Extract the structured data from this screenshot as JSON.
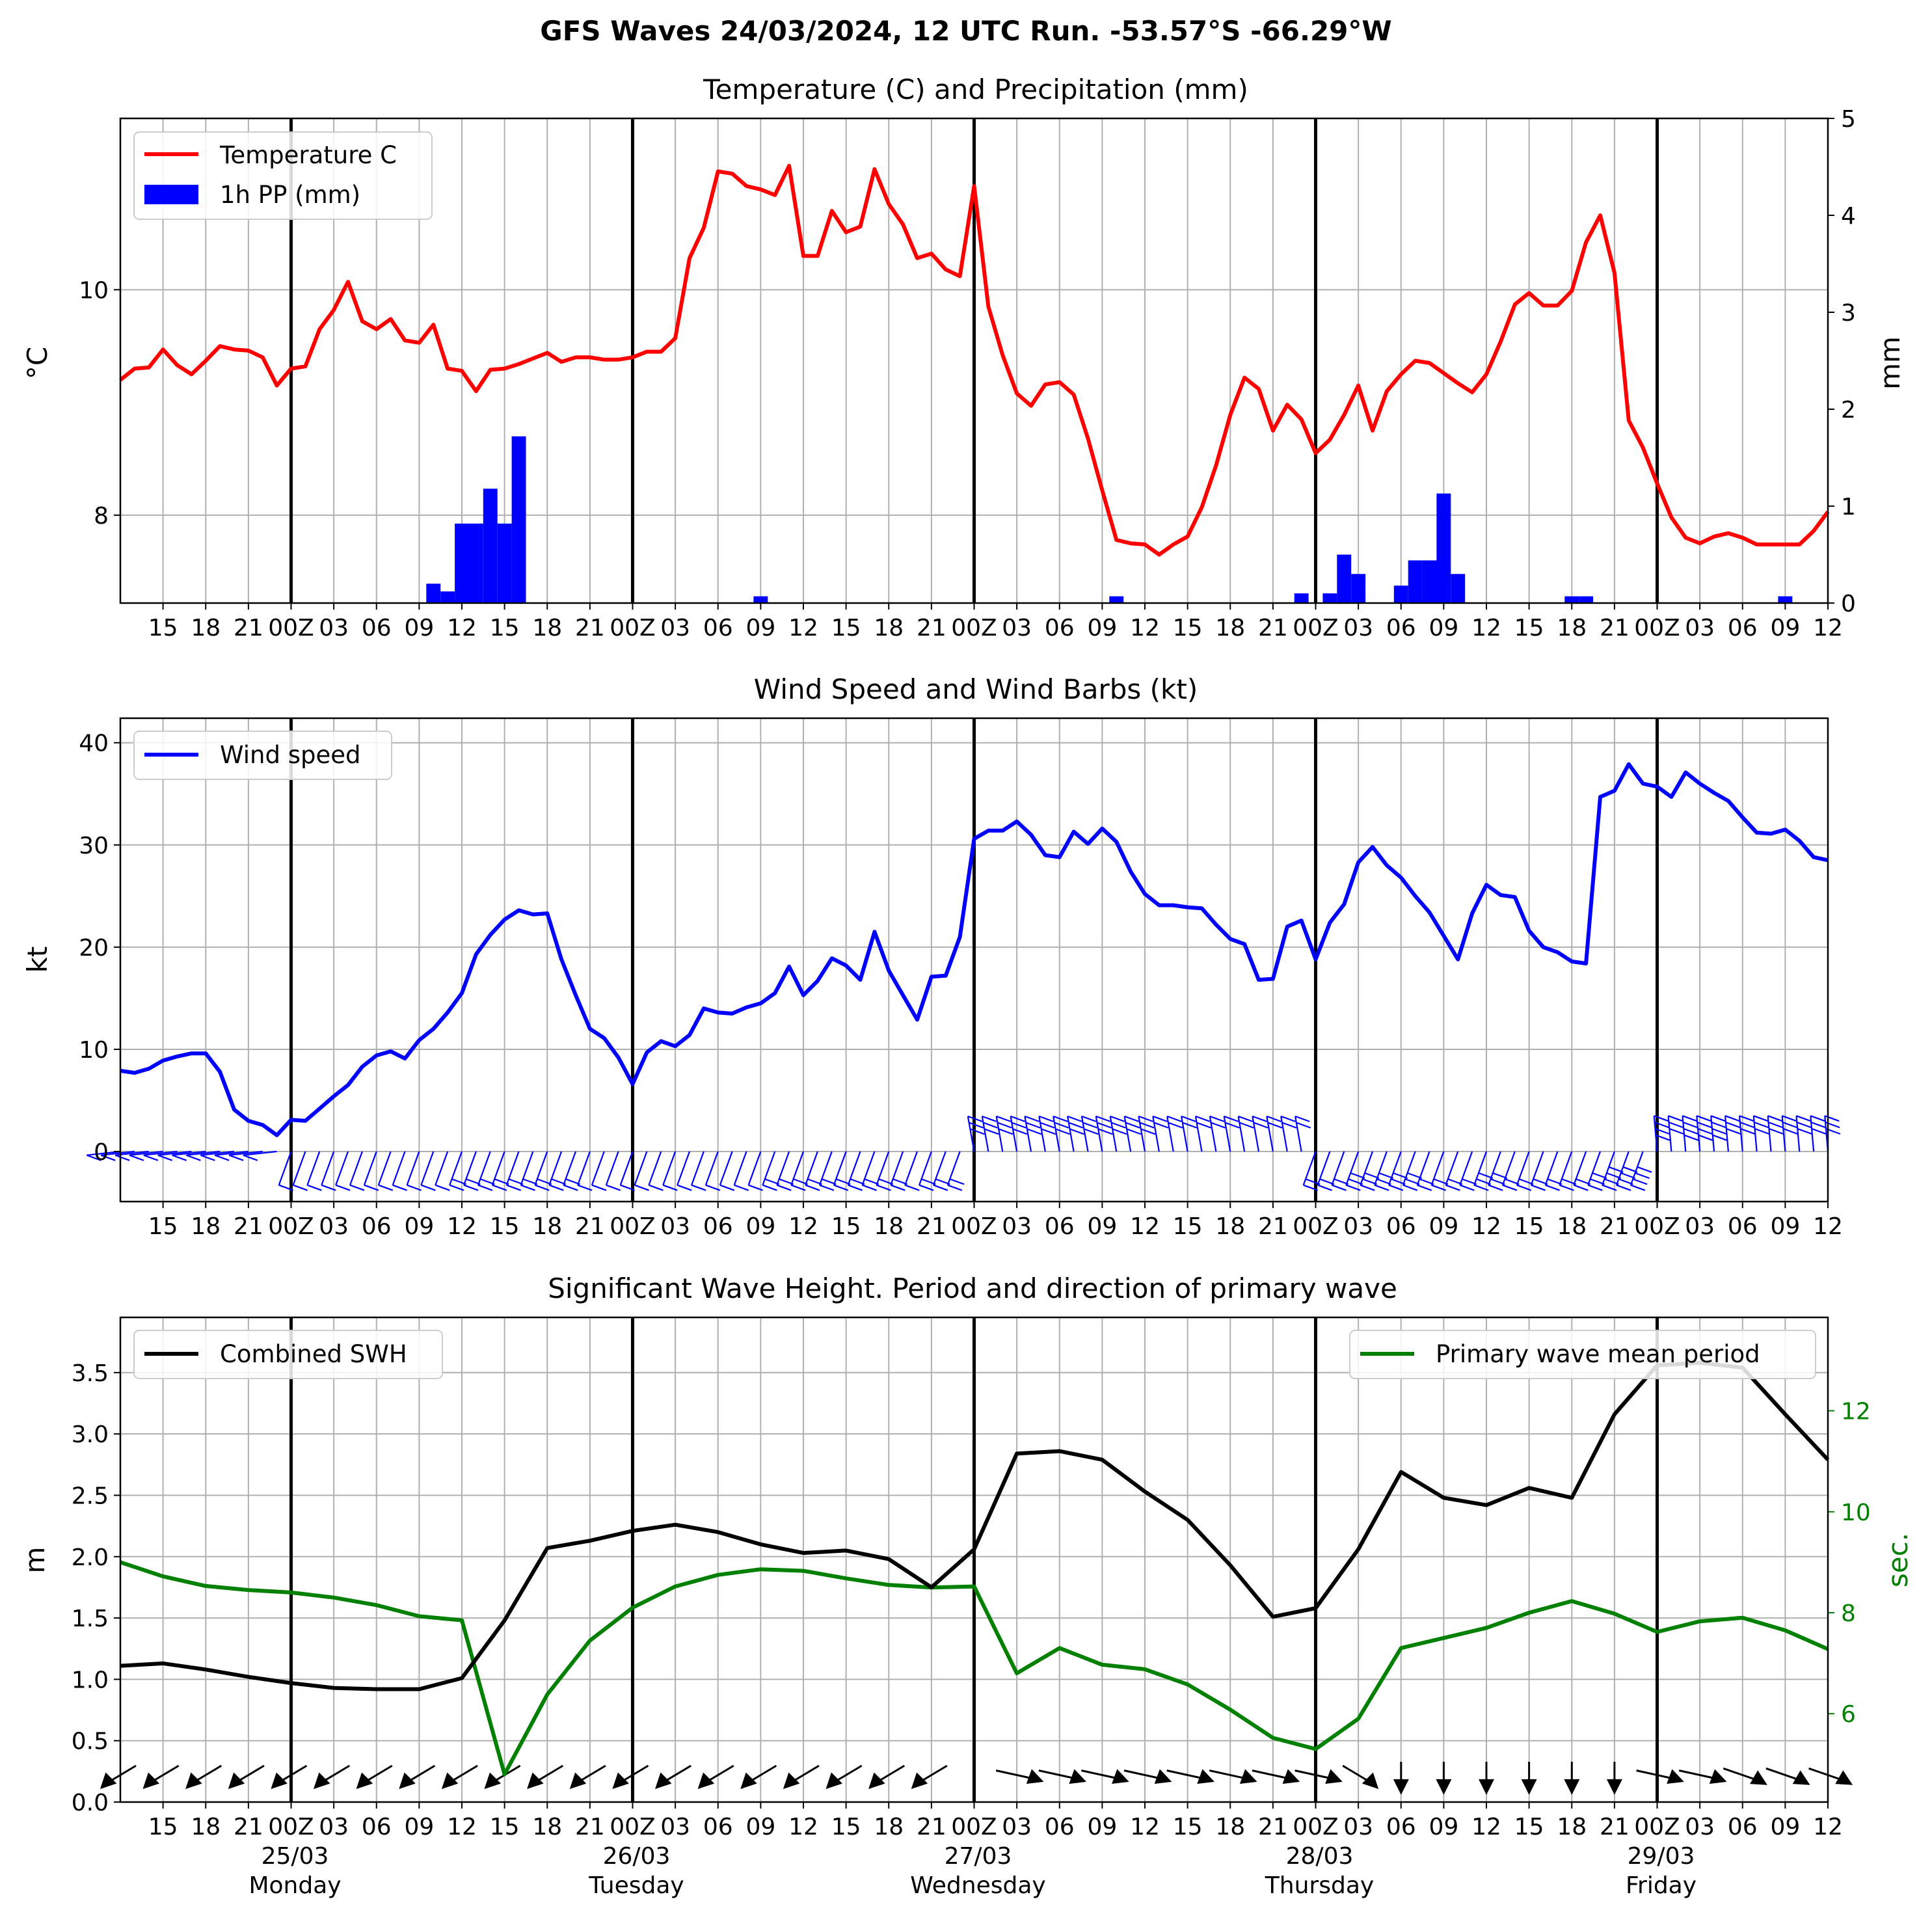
{
  "figure_title": "GFS Waves 24/03/2024, 12 UTC Run. -53.57°S -66.29°W",
  "colors": {
    "temperature": "#ff0000",
    "precipitation": "#0000ff",
    "wind": "#0000ff",
    "swh": "#000000",
    "period": "#008000",
    "grid": "#b0b0b0",
    "day_line": "#000000"
  },
  "x_axis": {
    "start": "24/03 12Z",
    "end": "29/03 12Z",
    "tick_labels": [
      "15",
      "18",
      "21",
      "00Z",
      "03",
      "06",
      "09",
      "12",
      "15",
      "18",
      "21",
      "00Z",
      "03",
      "06",
      "09",
      "12",
      "15",
      "18",
      "21",
      "00Z",
      "03",
      "06",
      "09",
      "12",
      "15",
      "18",
      "21",
      "00Z",
      "03",
      "06",
      "09",
      "12",
      "15",
      "18",
      "21",
      "00Z",
      "03",
      "06",
      "09",
      "12"
    ],
    "day_labels": [
      {
        "date": "25/03",
        "weekday": "Monday"
      },
      {
        "date": "26/03",
        "weekday": "Tuesday"
      },
      {
        "date": "27/03",
        "weekday": "Wednesday"
      },
      {
        "date": "28/03",
        "weekday": "Thursday"
      },
      {
        "date": "29/03",
        "weekday": "Friday"
      }
    ]
  },
  "chart_data": [
    {
      "type": "line",
      "title": "Temperature (C) and Precipitation (mm)",
      "ylabel": "°C",
      "ylabel_right": "mm",
      "ylim": [
        7.22,
        11.52
      ],
      "y_ticks": [
        8,
        10
      ],
      "ylim_right": [
        0,
        5
      ],
      "y_ticks_right": [
        0,
        1,
        2,
        3,
        4,
        5
      ],
      "grid": true,
      "legend_position": "upper-left",
      "x_hours": "hours after 24/03 12Z",
      "series": [
        {
          "name": "Temperature C",
          "kind": "line",
          "x": [
            0,
            1,
            2,
            3,
            4,
            5,
            6,
            7,
            8,
            9,
            10,
            11,
            12,
            13,
            14,
            15,
            16,
            17,
            18,
            19,
            20,
            21,
            22,
            23,
            24,
            25,
            26,
            27,
            28,
            29,
            30,
            31,
            32,
            33,
            34,
            35,
            36,
            37,
            38,
            39,
            40,
            41,
            42,
            43,
            44,
            45,
            46,
            47,
            48,
            49,
            50,
            51,
            52,
            53,
            54,
            55,
            56,
            57,
            58,
            59,
            60,
            61,
            62,
            63,
            64,
            65,
            66,
            67,
            68,
            69,
            70,
            71,
            72,
            73,
            74,
            75,
            76,
            77,
            78,
            79,
            80,
            81,
            82,
            83,
            84,
            85,
            86,
            87,
            88,
            89,
            90,
            91,
            92,
            93,
            94,
            95,
            96,
            97,
            98,
            99,
            100,
            101,
            102,
            103,
            104,
            105,
            106,
            107,
            108,
            109,
            110,
            111,
            112,
            113,
            114,
            115,
            116,
            117,
            118,
            119,
            120
          ],
          "values": [
            9.2,
            9.3,
            9.31,
            9.47,
            9.33,
            9.25,
            9.37,
            9.5,
            9.47,
            9.46,
            9.4,
            9.15,
            9.3,
            9.32,
            9.65,
            9.82,
            10.07,
            9.72,
            9.65,
            9.74,
            9.55,
            9.53,
            9.69,
            9.3,
            9.28,
            9.1,
            9.29,
            9.3,
            9.34,
            9.39,
            9.44,
            9.36,
            9.4,
            9.4,
            9.38,
            9.38,
            9.4,
            9.45,
            9.45,
            9.57,
            10.28,
            10.55,
            11.05,
            11.03,
            10.92,
            10.89,
            10.84,
            11.1,
            10.3,
            10.3,
            10.7,
            10.51,
            10.56,
            11.07,
            10.76,
            10.58,
            10.28,
            10.32,
            10.18,
            10.12,
            10.92,
            9.85,
            9.42,
            9.08,
            8.97,
            9.16,
            9.18,
            9.07,
            8.68,
            8.22,
            7.78,
            7.75,
            7.74,
            7.65,
            7.74,
            7.81,
            8.07,
            8.44,
            8.89,
            9.22,
            9.12,
            8.75,
            8.98,
            8.85,
            8.55,
            8.67,
            8.89,
            9.15,
            8.75,
            9.1,
            9.25,
            9.37,
            9.35,
            9.26,
            9.17,
            9.09,
            9.25,
            9.54,
            9.87,
            9.97,
            9.86,
            9.86,
            9.99,
            10.42,
            10.66,
            10.15,
            8.84,
            8.6,
            8.28,
            7.98,
            7.8,
            7.75,
            7.81,
            7.84,
            7.8,
            7.74,
            7.74,
            7.74,
            7.74,
            7.86,
            8.03
          ]
        },
        {
          "name": "1h PP (mm)",
          "kind": "bar",
          "axis": "right",
          "x": [
            22,
            23,
            24,
            25,
            26,
            27,
            28,
            45,
            70,
            83,
            85,
            86,
            87,
            90,
            91,
            92,
            93,
            94,
            95,
            102,
            103,
            117
          ],
          "values": [
            0.2,
            0.12,
            0.82,
            0.82,
            1.18,
            0.82,
            1.72,
            0.07,
            0.07,
            0.1,
            0.1,
            0.5,
            0.3,
            0.18,
            0.44,
            0.44,
            1.13,
            0.3,
            0.0,
            0.07,
            0.07,
            0.07
          ]
        }
      ]
    },
    {
      "type": "line",
      "title": "Wind Speed and Wind Barbs (kt)",
      "ylabel": "kt",
      "ylim": [
        -4.9,
        42.4
      ],
      "y_ticks": [
        0,
        10,
        20,
        30,
        40
      ],
      "grid": true,
      "legend_position": "upper-left",
      "x_hours": "hours after 24/03 12Z",
      "series": [
        {
          "name": "Wind speed",
          "kind": "line",
          "x": [
            0,
            1,
            2,
            3,
            4,
            5,
            6,
            7,
            8,
            9,
            10,
            11,
            12,
            13,
            14,
            15,
            16,
            17,
            18,
            19,
            20,
            21,
            22,
            23,
            24,
            25,
            26,
            27,
            28,
            29,
            30,
            31,
            32,
            33,
            34,
            35,
            36,
            37,
            38,
            39,
            40,
            41,
            42,
            43,
            44,
            45,
            46,
            47,
            48,
            49,
            50,
            51,
            52,
            53,
            54,
            55,
            56,
            57,
            58,
            59,
            60,
            61,
            62,
            63,
            64,
            65,
            66,
            67,
            68,
            69,
            70,
            71,
            72,
            73,
            74,
            75,
            76,
            77,
            78,
            79,
            80,
            81,
            82,
            83,
            84,
            85,
            86,
            87,
            88,
            89,
            90,
            91,
            92,
            93,
            94,
            95,
            96,
            97,
            98,
            99,
            100,
            101,
            102,
            103,
            104,
            105,
            106,
            107,
            108,
            109,
            110,
            111,
            112,
            113,
            114,
            115,
            116,
            117,
            118,
            119,
            120
          ],
          "values": [
            7.9,
            7.7,
            8.1,
            8.9,
            9.3,
            9.6,
            9.6,
            7.8,
            4.1,
            3.0,
            2.6,
            1.6,
            3.1,
            3.0,
            4.2,
            5.4,
            6.5,
            8.3,
            9.4,
            9.8,
            9.1,
            10.9,
            12.0,
            13.6,
            15.5,
            19.3,
            21.2,
            22.7,
            23.6,
            23.2,
            23.3,
            18.8,
            15.3,
            12.0,
            11.1,
            9.2,
            6.6,
            9.7,
            10.8,
            10.3,
            11.4,
            14.0,
            13.6,
            13.5,
            14.1,
            14.5,
            15.5,
            18.1,
            15.3,
            16.7,
            18.9,
            18.2,
            16.8,
            21.5,
            17.7,
            15.3,
            12.9,
            17.1,
            17.2,
            21.0,
            30.6,
            31.4,
            31.4,
            32.3,
            31.0,
            29.0,
            28.8,
            31.3,
            30.1,
            31.6,
            30.3,
            27.4,
            25.2,
            24.1,
            24.1,
            23.9,
            23.8,
            22.2,
            20.8,
            20.3,
            16.8,
            16.9,
            22.0,
            22.6,
            18.8,
            22.4,
            24.2,
            28.3,
            29.8,
            28.0,
            26.8,
            25.0,
            23.4,
            21.1,
            18.8,
            23.3,
            26.1,
            25.1,
            24.9,
            21.6,
            20.0,
            19.5,
            18.6,
            18.4,
            34.7,
            35.3,
            37.9,
            36.0,
            35.7,
            34.7,
            37.1,
            36.0,
            35.1,
            34.3,
            32.7,
            31.2,
            31.1,
            31.5,
            30.4,
            28.8,
            28.5
          ]
        }
      ]
    },
    {
      "type": "line",
      "title": "Significant Wave Height. Period and direction of primary wave",
      "ylabel": "m",
      "ylabel_right": "sec.",
      "ylim": [
        0,
        3.95
      ],
      "y_ticks": [
        0.0,
        0.5,
        1.0,
        1.5,
        2.0,
        2.5,
        3.0,
        3.5
      ],
      "ylim_right": [
        4.25,
        13.85
      ],
      "y_ticks_right": [
        6,
        8,
        10,
        12
      ],
      "grid": true,
      "legend_position": "upper-left / upper-right",
      "x_hours": "hours after 24/03 12Z",
      "series": [
        {
          "name": "Combined SWH",
          "kind": "line",
          "x": [
            0,
            3,
            6,
            9,
            12,
            15,
            18,
            21,
            24,
            27,
            30,
            33,
            36,
            39,
            42,
            45,
            48,
            51,
            54,
            57,
            60,
            63,
            66,
            69,
            72,
            75,
            78,
            81,
            84,
            87,
            90,
            93,
            96,
            99,
            102,
            105,
            108,
            111,
            114,
            117,
            120
          ],
          "values": [
            1.11,
            1.13,
            1.08,
            1.02,
            0.97,
            0.93,
            0.92,
            0.92,
            1.01,
            1.48,
            2.07,
            2.13,
            2.21,
            2.26,
            2.2,
            2.1,
            2.03,
            2.05,
            1.98,
            1.75,
            2.06,
            2.84,
            2.86,
            2.79,
            2.53,
            2.3,
            1.93,
            1.51,
            1.58,
            2.06,
            2.69,
            2.48,
            2.42,
            2.56,
            2.48,
            3.16,
            3.56,
            3.58,
            3.54,
            3.16,
            2.79
          ]
        },
        {
          "name": "Primary wave mean period",
          "kind": "line",
          "axis": "right",
          "x": [
            0,
            3,
            6,
            9,
            12,
            15,
            18,
            21,
            24,
            27,
            30,
            33,
            36,
            39,
            42,
            45,
            48,
            51,
            54,
            57,
            60,
            63,
            66,
            69,
            72,
            75,
            78,
            81,
            84,
            87,
            90,
            93,
            96,
            99,
            102,
            105,
            108,
            111,
            114,
            117,
            120
          ],
          "values": [
            9.0,
            8.72,
            8.53,
            8.45,
            8.4,
            8.3,
            8.15,
            7.93,
            7.85,
            4.8,
            6.38,
            7.45,
            8.1,
            8.52,
            8.75,
            8.86,
            8.83,
            8.68,
            8.55,
            8.5,
            8.52,
            6.8,
            7.3,
            6.97,
            6.88,
            6.58,
            6.08,
            5.52,
            5.3,
            5.9,
            7.3,
            7.5,
            7.7,
            8.0,
            8.23,
            7.98,
            7.62,
            7.83,
            7.9,
            7.65,
            7.28
          ]
        }
      ],
      "wave_direction_from_deg": [
        45,
        45,
        45,
        45,
        45,
        45,
        45,
        45,
        45,
        45,
        45,
        45,
        45,
        45,
        45,
        45,
        45,
        45,
        45,
        45,
        null,
        290,
        290,
        290,
        290,
        290,
        290,
        290,
        290,
        315,
        0,
        0,
        0,
        0,
        0,
        0,
        290,
        290,
        300,
        300,
        300
      ]
    }
  ]
}
